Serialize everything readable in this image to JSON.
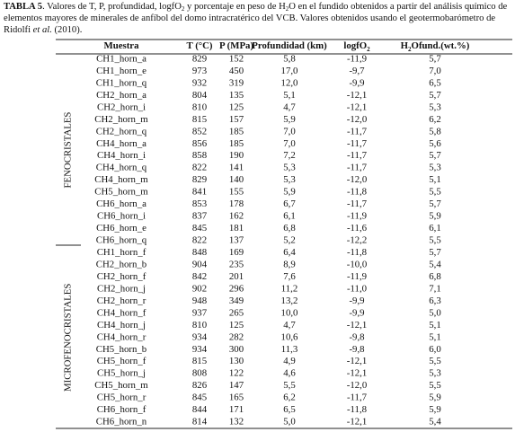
{
  "caption": {
    "segments": [
      "TABLA 5",
      ". Valores de T, P, profundidad, logfO",
      "2",
      " y porcentaje en peso de H",
      "2",
      "O en el fundido obtenidos a partir del análisis químico de elementos mayores de minerales de anfíbol del domo intracratérico del VCB. Valores obtenidos usando el geotermobarómetro de Ridolfi ",
      "et al.",
      " (2010)."
    ]
  },
  "table": {
    "headers": [
      [
        "Muestra"
      ],
      [
        "T (°C)"
      ],
      [
        "P (MPa)"
      ],
      [
        "Profundidad (km)"
      ],
      [
        "logfO",
        "2"
      ],
      [
        "H",
        "2",
        "Ofund.(wt.%)"
      ]
    ],
    "groups": [
      {
        "label": "FENOCRISTALES",
        "rows": [
          [
            "CH1_horn_a",
            "829",
            "152",
            "5,8",
            "-11,9",
            "5,7"
          ],
          [
            "CH1_horn_e",
            "973",
            "450",
            "17,0",
            "-9,7",
            "7,0"
          ],
          [
            "CH1_horn_q",
            "932",
            "319",
            "12,0",
            "-9,9",
            "6,5"
          ],
          [
            "CH2_horn_a",
            "804",
            "135",
            "5,1",
            "-12,1",
            "5,7"
          ],
          [
            "CH2_horn_i",
            "810",
            "125",
            "4,7",
            "-12,1",
            "5,3"
          ],
          [
            "CH2_horn_m",
            "815",
            "157",
            "5,9",
            "-12,0",
            "6,2"
          ],
          [
            "CH2_horn_q",
            "852",
            "185",
            "7,0",
            "-11,7",
            "5,8"
          ],
          [
            "CH4_horn_a",
            "856",
            "185",
            "7,0",
            "-11,7",
            "5,6"
          ],
          [
            "CH4_horn_i",
            "858",
            "190",
            "7,2",
            "-11,7",
            "5,7"
          ],
          [
            "CH4_horn_q",
            "822",
            "141",
            "5,3",
            "-11,7",
            "5,3"
          ],
          [
            "CH4_horn_m",
            "829",
            "140",
            "5,3",
            "-12,0",
            "5,1"
          ],
          [
            "CH5_horn_m",
            "841",
            "155",
            "5,9",
            "-11,8",
            "5,5"
          ],
          [
            "CH6_horn_a",
            "853",
            "178",
            "6,7",
            "-11,7",
            "5,7"
          ],
          [
            "CH6_horn_i",
            "837",
            "162",
            "6,1",
            "-11,9",
            "5,9"
          ],
          [
            "CH6_horn_e",
            "845",
            "181",
            "6,8",
            "-11,6",
            "6,1"
          ],
          [
            "CH6_horn_q",
            "822",
            "137",
            "5,2",
            "-12,2",
            "5,5"
          ]
        ]
      },
      {
        "label": "MICROFENOCRISTALES",
        "rows": [
          [
            "CH1_horn_f",
            "848",
            "169",
            "6,4",
            "-11,8",
            "5,7"
          ],
          [
            "CH2_horn_b",
            "904",
            "235",
            "8,9",
            "-10,0",
            "5,4"
          ],
          [
            "CH2_horn_f",
            "842",
            "201",
            "7,6",
            "-11,9",
            "6,8"
          ],
          [
            "CH2_horn_j",
            "902",
            "296",
            "11,2",
            "-11,0",
            "7,1"
          ],
          [
            "CH2_horn_r",
            "948",
            "349",
            "13,2",
            "-9,9",
            "6,3"
          ],
          [
            "CH4_horn_f",
            "937",
            "265",
            "10,0",
            "-9,9",
            "5,0"
          ],
          [
            "CH4_horn_j",
            "810",
            "125",
            "4,7",
            "-12,1",
            "5,1"
          ],
          [
            "CH4_horn_r",
            "934",
            "282",
            "10,6",
            "-9,8",
            "5,1"
          ],
          [
            "CH5_horn_b",
            "934",
            "300",
            "11,3",
            "-9,8",
            "6,0"
          ],
          [
            "CH5_horn_f",
            "815",
            "130",
            "4,9",
            "-12,1",
            "5,5"
          ],
          [
            "CH5_horn_j",
            "808",
            "122",
            "4,6",
            "-12,1",
            "5,3"
          ],
          [
            "CH5_horn_m",
            "826",
            "147",
            "5,5",
            "-12,0",
            "5,5"
          ],
          [
            "CH5_horn_r",
            "845",
            "165",
            "6,2",
            "-11,7",
            "5,9"
          ],
          [
            "CH6_horn_f",
            "844",
            "171",
            "6,5",
            "-11,8",
            "5,9"
          ],
          [
            "CH6_horn_n",
            "814",
            "132",
            "5,0",
            "-12,1",
            "5,4"
          ]
        ]
      }
    ]
  }
}
